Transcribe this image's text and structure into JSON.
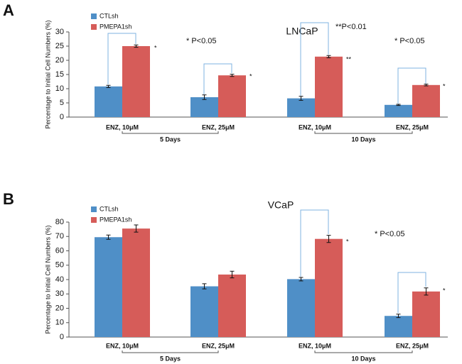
{
  "chart_data": [
    {
      "type": "bar",
      "panel_label": "A",
      "title": "LNCaP",
      "y_label": "Percentage to Initial Cell Numbers (%)",
      "categories": [
        "ENZ, 10μM",
        "ENZ, 25μM",
        "ENZ, 10μM",
        "ENZ, 25μM"
      ],
      "series": [
        {
          "name": "CTLsh",
          "color": "#4f8fc7",
          "values": [
            10.8,
            7,
            6.6,
            4.3
          ],
          "errors": [
            0.4,
            0.8,
            0.7,
            0.2
          ]
        },
        {
          "name": "PMEPA1sh",
          "color": "#d65c59",
          "values": [
            25,
            14.7,
            21.3,
            11.3
          ],
          "errors": [
            0.4,
            0.4,
            0.4,
            0.3
          ]
        }
      ],
      "ylim": [
        0,
        30
      ],
      "yticks": [
        0,
        5,
        10,
        15,
        20,
        25,
        30
      ],
      "group_labels": [
        "5 Days",
        "10 Days"
      ],
      "annotations": [
        "*",
        "*",
        "**",
        "*",
        "* P<0.05",
        "**P<0.01",
        "* P<0.05"
      ]
    },
    {
      "type": "bar",
      "panel_label": "B",
      "title": "VCaP",
      "y_label": "Percentage to Initial Cell Numbers (%)",
      "categories": [
        "ENZ, 10μM",
        "ENZ, 25μM",
        "ENZ, 10μM",
        "ENZ, 25μM"
      ],
      "series": [
        {
          "name": "CTLsh",
          "color": "#4f8fc7",
          "values": [
            69.5,
            35.3,
            40.3,
            14.7
          ],
          "errors": [
            1.5,
            1.8,
            1.2,
            1.2
          ]
        },
        {
          "name": "PMEPA1sh",
          "color": "#d65c59",
          "values": [
            75.5,
            43.5,
            68.3,
            31.7
          ],
          "errors": [
            2.5,
            2.3,
            2.5,
            2.5
          ]
        }
      ],
      "ylim": [
        0,
        80
      ],
      "yticks": [
        0,
        10,
        20,
        30,
        40,
        50,
        60,
        70,
        80
      ],
      "group_labels": [
        "5 Days",
        "10 Days"
      ],
      "annotations": [
        "*",
        "*",
        "* P<0.05"
      ]
    }
  ]
}
